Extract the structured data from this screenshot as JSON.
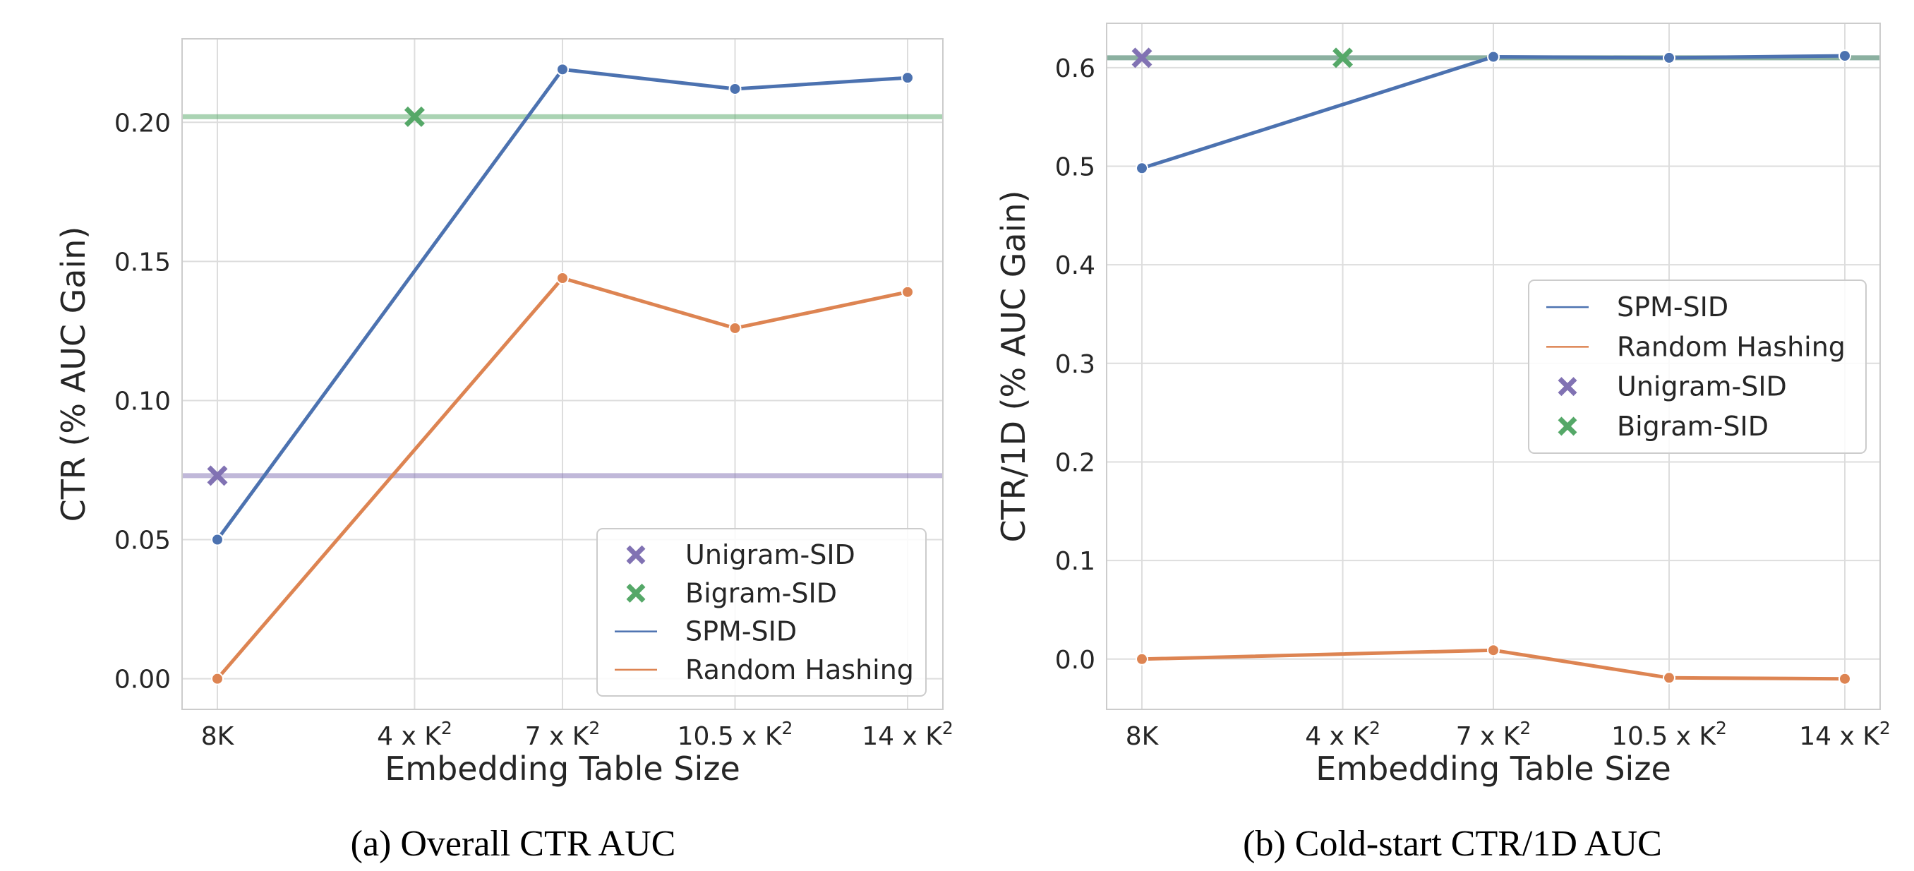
{
  "chart_data": [
    {
      "type": "line",
      "caption": "(a) Overall CTR AUC",
      "xlabel": "Embedding Table Size",
      "ylabel": "CTR (% AUC Gain)",
      "categories": [
        {
          "base": "8K",
          "sup": ""
        },
        {
          "base": "4 x K",
          "sup": "2"
        },
        {
          "base": "7 x K",
          "sup": "2"
        },
        {
          "base": "10.5 x K",
          "sup": "2"
        },
        {
          "base": "14 x K",
          "sup": "2"
        }
      ],
      "x_positions": [
        0,
        1,
        1.75,
        2.625,
        3.5
      ],
      "ylim": [
        -0.011,
        0.23
      ],
      "yticks": [
        0.0,
        0.05,
        0.1,
        0.15,
        0.2
      ],
      "ytick_labels": [
        "0.00",
        "0.05",
        "0.10",
        "0.15",
        "0.20"
      ],
      "grid": true,
      "legend_position": "lower-right",
      "series": [
        {
          "name": "SPM-SID",
          "kind": "line",
          "color": "#4c72b0",
          "values": [
            0.05,
            null,
            0.219,
            0.212,
            0.216
          ]
        },
        {
          "name": "Random Hashing",
          "kind": "line",
          "color": "#dd8452",
          "values": [
            0.0,
            null,
            0.144,
            0.126,
            0.139
          ]
        },
        {
          "name": "Unigram-SID",
          "kind": "marker",
          "color": "#8172b3",
          "x_index": 0,
          "value": 0.073
        },
        {
          "name": "Bigram-SID",
          "kind": "marker",
          "color": "#55a868",
          "x_index": 1,
          "value": 0.202
        }
      ],
      "legend_order": [
        "Unigram-SID",
        "Bigram-SID",
        "SPM-SID",
        "Random Hashing"
      ]
    },
    {
      "type": "line",
      "caption": "(b) Cold-start CTR/1D AUC",
      "xlabel": "Embedding Table Size",
      "ylabel": "CTR/1D (% AUC Gain)",
      "categories": [
        {
          "base": "8K",
          "sup": ""
        },
        {
          "base": "4 x K",
          "sup": "2"
        },
        {
          "base": "7 x K",
          "sup": "2"
        },
        {
          "base": "10.5 x K",
          "sup": "2"
        },
        {
          "base": "14 x K",
          "sup": "2"
        }
      ],
      "x_positions": [
        0,
        1,
        1.75,
        2.625,
        3.5
      ],
      "ylim": [
        -0.051,
        0.645
      ],
      "yticks": [
        0.0,
        0.1,
        0.2,
        0.3,
        0.4,
        0.5,
        0.6
      ],
      "ytick_labels": [
        "0.0",
        "0.1",
        "0.2",
        "0.3",
        "0.4",
        "0.5",
        "0.6"
      ],
      "grid": true,
      "legend_position": "center-right",
      "series": [
        {
          "name": "SPM-SID",
          "kind": "line",
          "color": "#4c72b0",
          "values": [
            0.498,
            null,
            0.611,
            0.61,
            0.612
          ]
        },
        {
          "name": "Random Hashing",
          "kind": "line",
          "color": "#dd8452",
          "values": [
            0.0,
            null,
            0.009,
            -0.019,
            -0.02
          ]
        },
        {
          "name": "Unigram-SID",
          "kind": "marker",
          "color": "#8172b3",
          "x_index": 0,
          "value": 0.61
        },
        {
          "name": "Bigram-SID",
          "kind": "marker",
          "color": "#55a868",
          "x_index": 1,
          "value": 0.61
        }
      ],
      "legend_order": [
        "SPM-SID",
        "Random Hashing",
        "Unigram-SID",
        "Bigram-SID"
      ]
    }
  ]
}
